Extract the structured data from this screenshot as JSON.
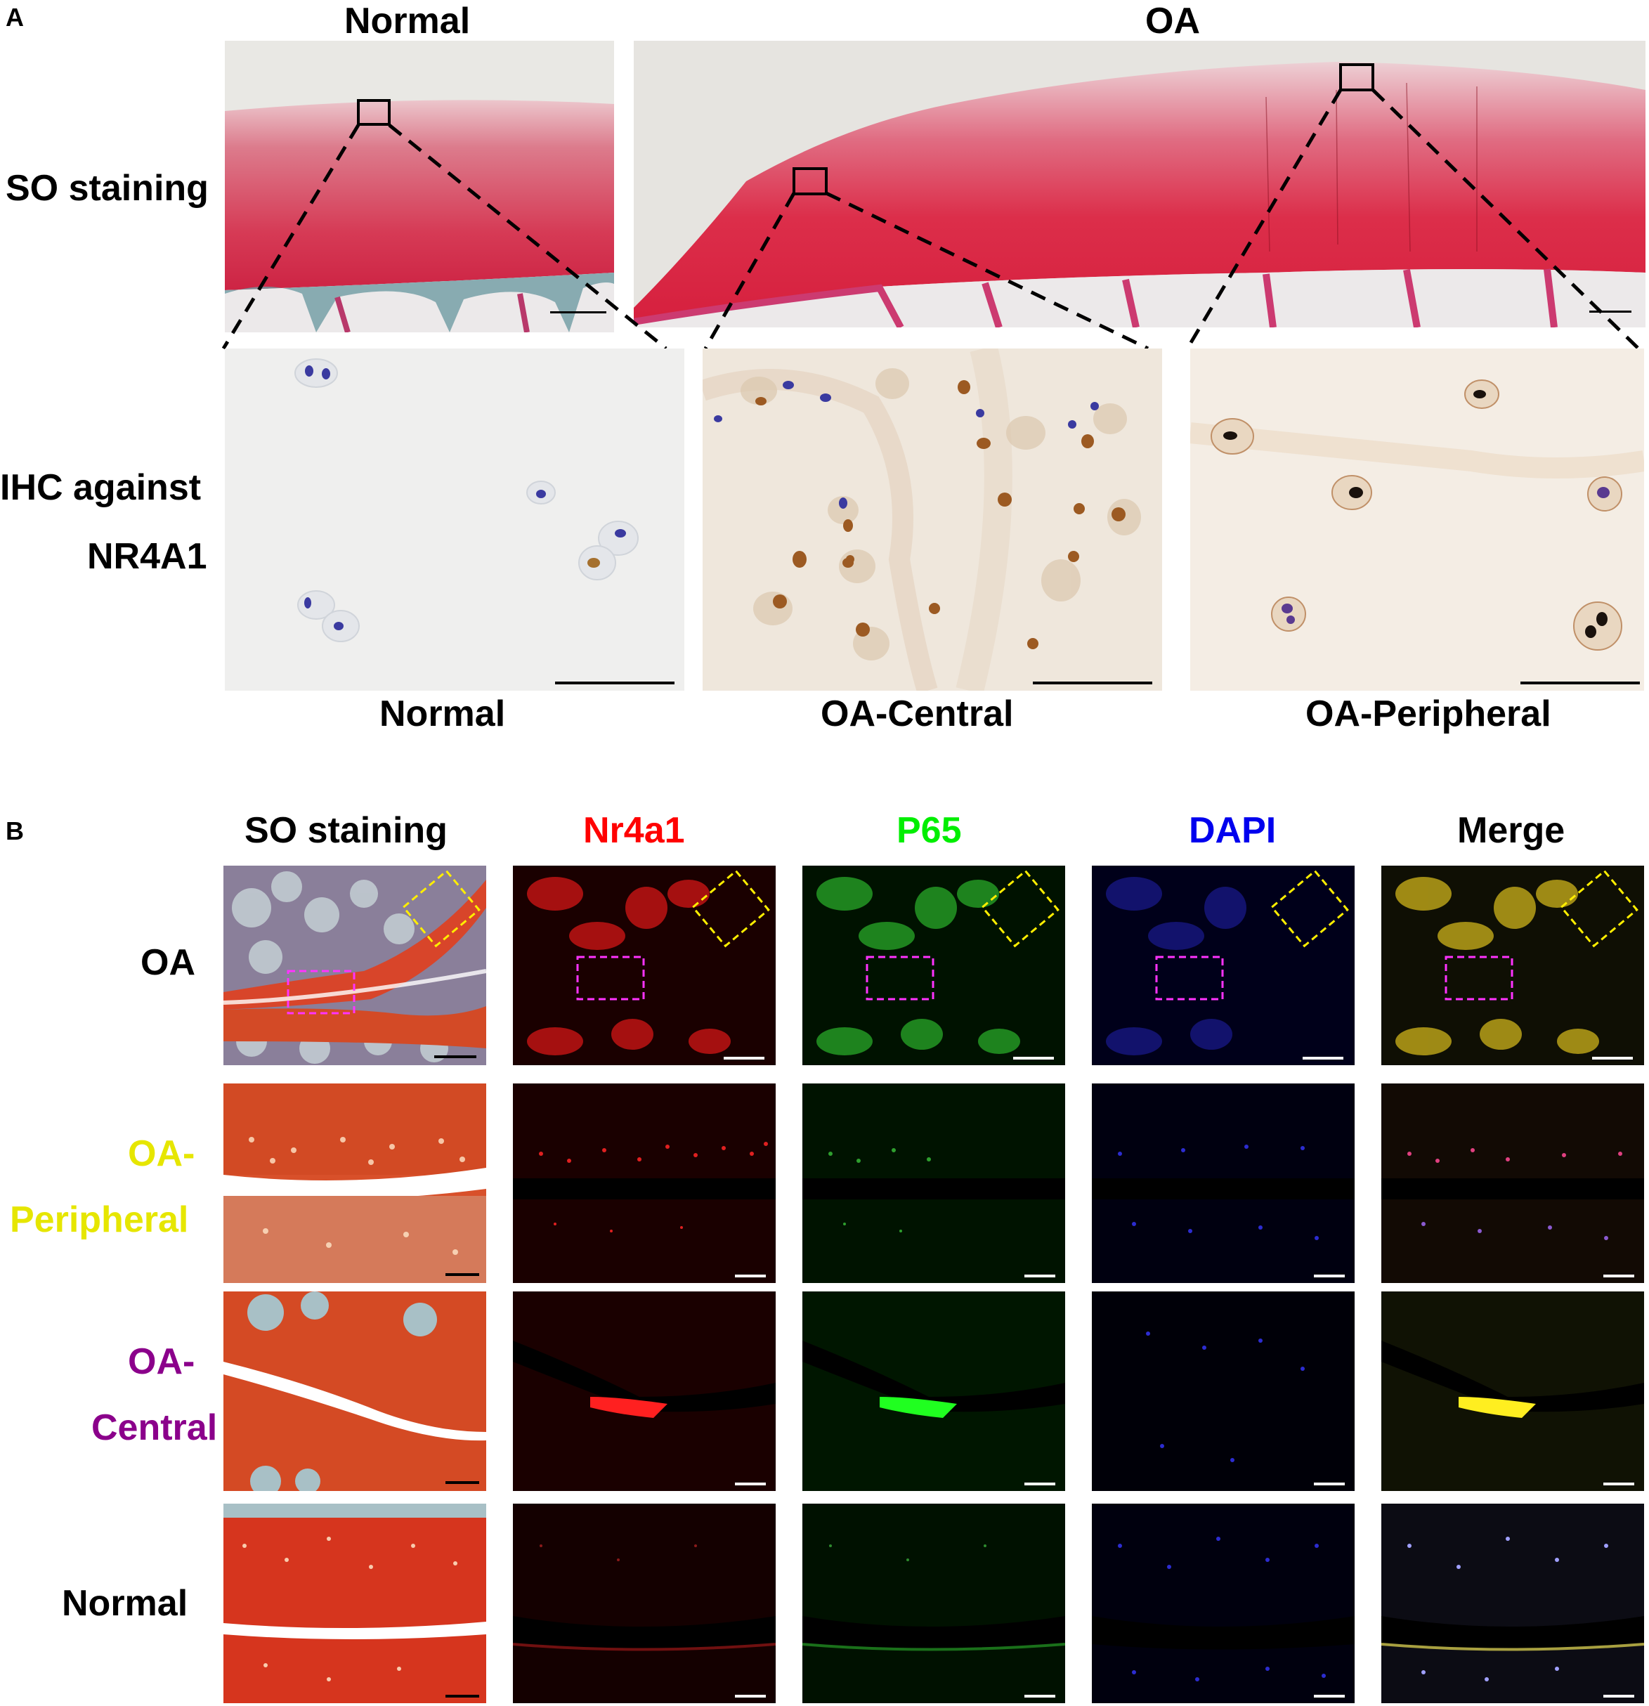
{
  "panel_a": {
    "letter": "A",
    "col_normal": "Normal",
    "col_oa": "OA",
    "row_so": "SO staining",
    "row_ihc_line1": "IHC against",
    "row_ihc_line2": "NR4A1",
    "zoom_labels": [
      "Normal",
      "OA-Central",
      "OA-Peripheral"
    ]
  },
  "panel_b": {
    "letter": "B",
    "columns": [
      {
        "label": "SO staining",
        "color": "#000000"
      },
      {
        "label": "Nr4a1",
        "color": "#ff0000"
      },
      {
        "label": "P65",
        "color": "#00ee00"
      },
      {
        "label": "DAPI",
        "color": "#0000ee"
      },
      {
        "label": "Merge",
        "color": "#000000"
      }
    ],
    "rows": [
      {
        "line1": "OA",
        "line2": "",
        "color": "#000000"
      },
      {
        "line1": "OA-",
        "line2": "Peripheral",
        "color": "#e6e600"
      },
      {
        "line1": "OA-",
        "line2": "Central",
        "color": "#8b008b"
      },
      {
        "line1": "Normal",
        "line2": "",
        "color": "#000000"
      }
    ]
  },
  "colors": {
    "safranin_red": "#d8233a",
    "fast_green": "#7fa6a0",
    "ihc_brown": "#b06a2a",
    "hematoxylin_blue": "#3a3aa0",
    "box_magenta": "#ff33ff",
    "box_yellow": "#ffee00"
  }
}
